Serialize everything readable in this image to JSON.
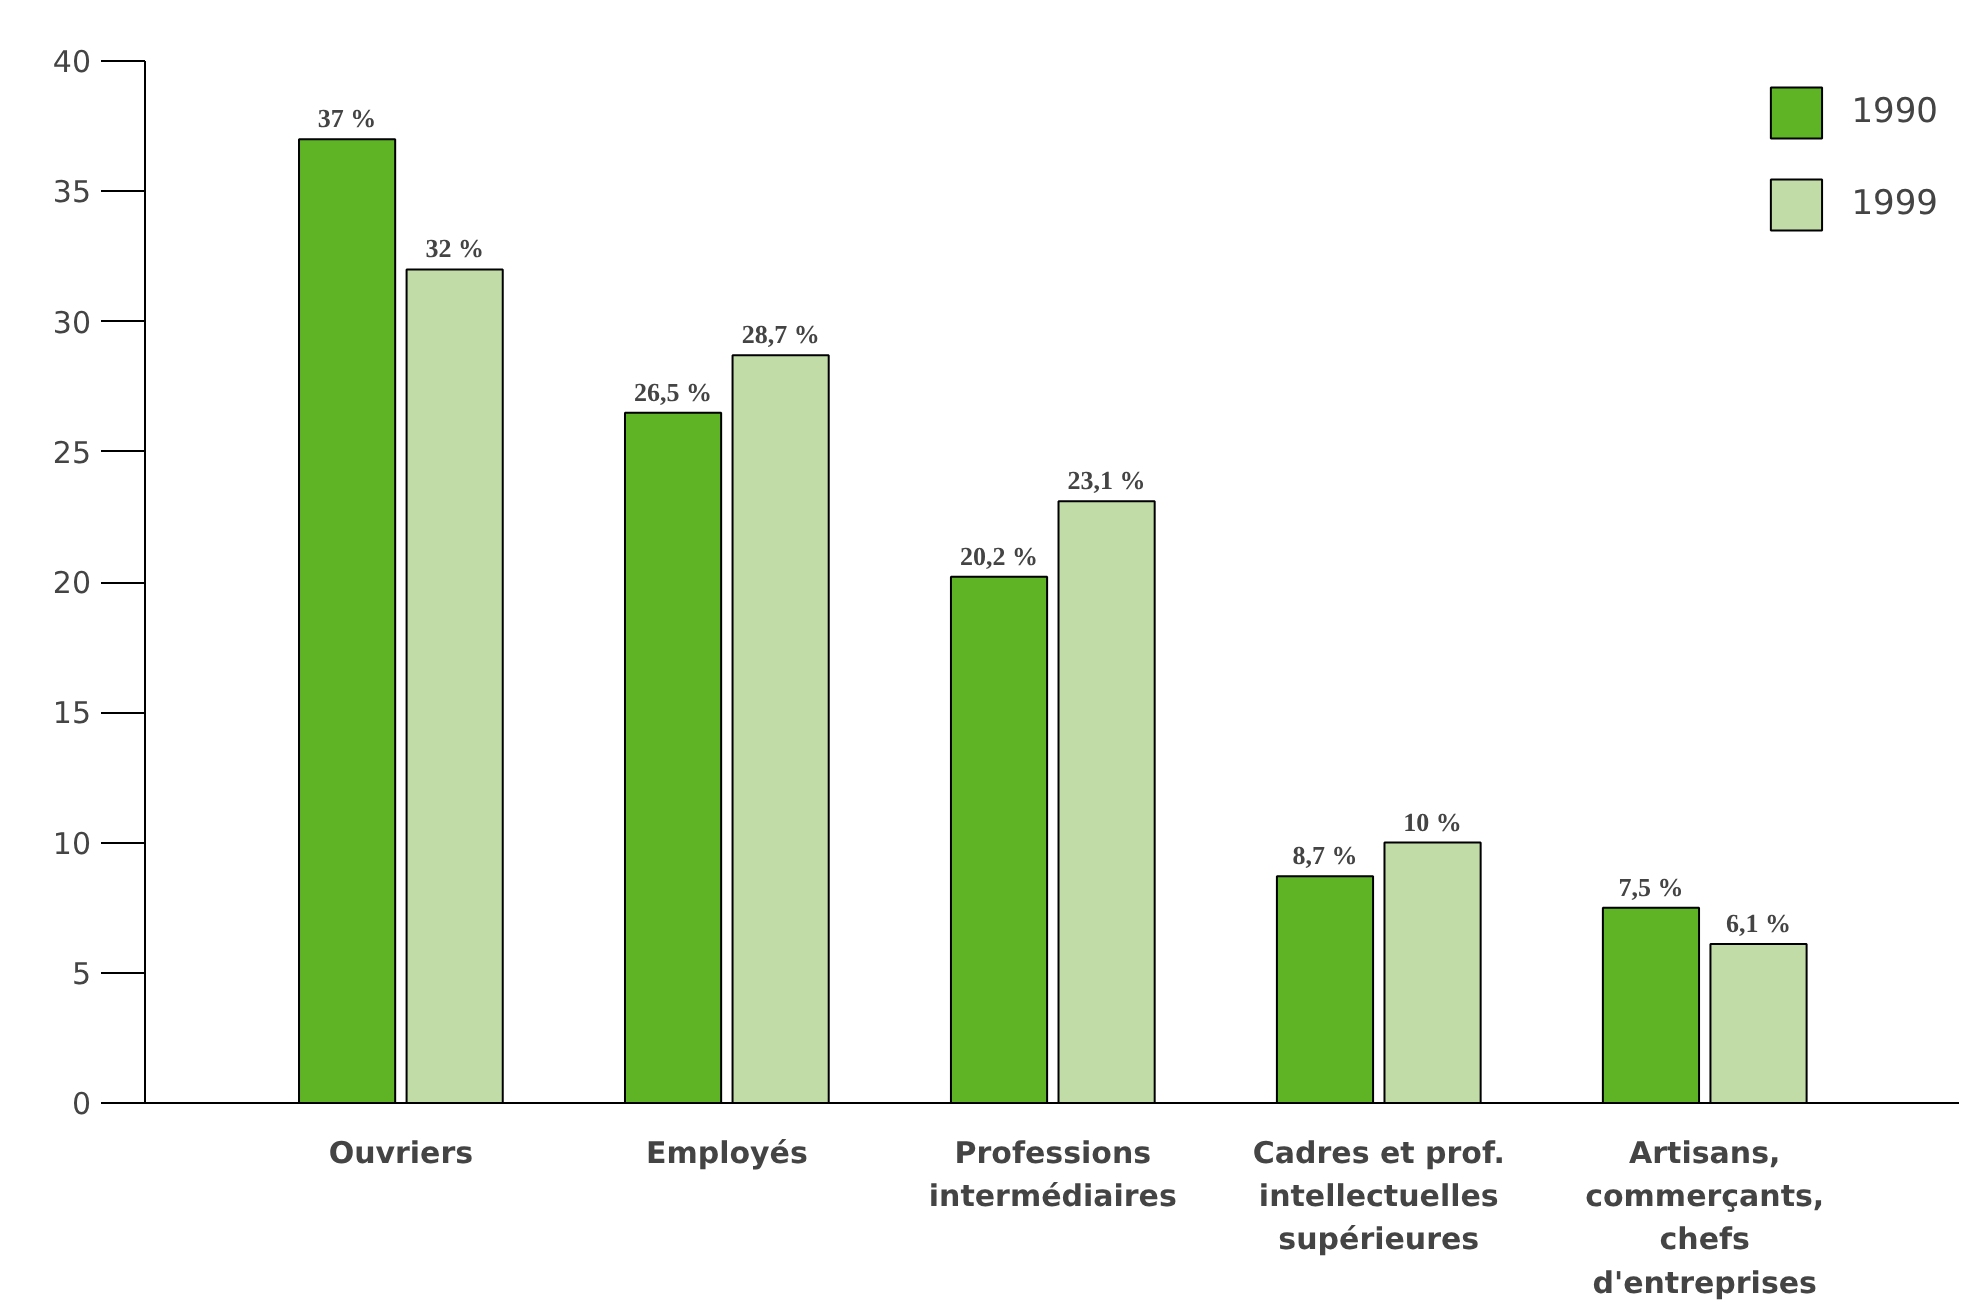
{
  "chart_data": {
    "type": "bar",
    "categories": [
      "Ouvriers",
      "Employés",
      "Professions intermédiaires",
      "Cadres et prof. intellectuelles supérieures",
      "Artisans, commerçants, chefs d'entreprises"
    ],
    "series": [
      {
        "name": "1990",
        "color": "#5eb424",
        "values": [
          37,
          26.5,
          20.2,
          8.7,
          7.5
        ],
        "value_labels": [
          "37 %",
          "26,5 %",
          "20,2 %",
          "8,7 %",
          "7,5 %"
        ]
      },
      {
        "name": "1999",
        "color": "#c2dca8",
        "values": [
          32,
          28.7,
          23.1,
          10,
          6.1
        ],
        "value_labels": [
          "32 %",
          "28,7 %",
          "23,1 %",
          "10 %",
          "6,1 %"
        ]
      }
    ],
    "ylim": [
      0,
      40
    ],
    "yticks": [
      0,
      5,
      10,
      15,
      20,
      25,
      30,
      35,
      40
    ],
    "grid": false,
    "legend": "top right"
  }
}
